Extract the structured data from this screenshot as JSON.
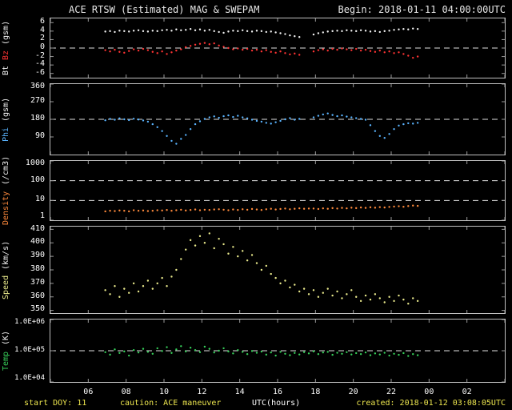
{
  "header": {
    "title": "ACE RTSW (Estimated) MAG & SWEPAM",
    "begin_label": "Begin: 2018-01-11 04:00:00UTC"
  },
  "footer": {
    "start_doy": "start DOY: 11",
    "caution": "caution:  ACE maneuver",
    "created": "created: 2018-01-12 03:08:05UTC"
  },
  "x_axis": {
    "label": "UTC(hours)",
    "range": [
      4,
      28
    ],
    "tick_values": [
      6,
      8,
      10,
      12,
      14,
      16,
      18,
      20,
      22,
      24,
      26
    ],
    "ticks": [
      "06",
      "08",
      "10",
      "12",
      "14",
      "16",
      "18",
      "20",
      "22",
      "00",
      "02"
    ]
  },
  "colors": {
    "background": "#000000",
    "frame": "#c0c0c0",
    "text": "#e8e8e8",
    "footer_yellow": "#ece54e",
    "bt": "#f2f2f2",
    "bz": "#ff3333",
    "phi": "#5ab4ff",
    "density": "#ff8a3c",
    "speed": "#eaea8c",
    "temp": "#37d05a"
  },
  "chart_data": [
    {
      "name": "mag-bt-bz",
      "type": "scatter",
      "scale": "linear",
      "ylim": [
        -7,
        7
      ],
      "yticks": [
        {
          "v": 6,
          "label": "6"
        },
        {
          "v": 4,
          "label": "4"
        },
        {
          "v": 2,
          "label": "2"
        },
        {
          "v": 0,
          "label": "0"
        },
        {
          "v": -2,
          "label": "-2"
        },
        {
          "v": -4,
          "label": "-4"
        },
        {
          "v": -6,
          "label": "-6"
        }
      ],
      "dashed": [
        0
      ],
      "ylabel_parts": [
        {
          "text": "Bt",
          "color": "#f2f2f2"
        },
        {
          "text": "Bz",
          "color": "#ff3333"
        },
        {
          "text": "(gsm)",
          "color": "#f2f2f2"
        }
      ],
      "series": [
        {
          "name": "Bt",
          "color": "#f2f2f2",
          "t_start": 6.9,
          "t_step": 0.25,
          "values": [
            3.9,
            4.0,
            3.8,
            4.1,
            4.0,
            3.9,
            4.1,
            4.2,
            4.0,
            3.9,
            4.1,
            4.0,
            4.2,
            4.3,
            4.1,
            4.4,
            4.2,
            4.3,
            4.5,
            4.2,
            4.4,
            4.1,
            4.3,
            4.0,
            3.8,
            3.6,
            3.9,
            4.1,
            4.0,
            4.2,
            4.0,
            3.9,
            4.1,
            4.0,
            3.8,
            3.9,
            3.7,
            3.5,
            3.3,
            3.0,
            2.8,
            2.6,
            null,
            null,
            3.2,
            3.5,
            3.7,
            3.9,
            4.0,
            4.1,
            4.0,
            4.2,
            4.1,
            4.0,
            4.2,
            4.1,
            3.9,
            4.0,
            3.8,
            4.0,
            4.1,
            4.3,
            4.4,
            4.5,
            4.4,
            4.6,
            4.5
          ]
        },
        {
          "name": "Bz",
          "color": "#ff3333",
          "t_start": 6.9,
          "t_step": 0.25,
          "values": [
            -0.5,
            -0.8,
            -0.4,
            -0.9,
            -1.1,
            -0.7,
            -0.3,
            -0.6,
            -0.2,
            -0.5,
            -0.9,
            -1.2,
            -0.8,
            -1.4,
            -1.0,
            -0.6,
            -0.3,
            0.2,
            0.5,
            0.8,
            1.0,
            1.2,
            0.9,
            1.1,
            0.6,
            0.3,
            0.0,
            -0.3,
            -0.1,
            -0.4,
            -0.2,
            -0.6,
            -0.4,
            -0.8,
            -0.5,
            -0.9,
            -1.1,
            -0.8,
            -1.2,
            -1.5,
            -1.3,
            -1.6,
            null,
            null,
            -0.8,
            -0.5,
            -0.3,
            -0.6,
            -0.2,
            -0.4,
            -0.1,
            -0.3,
            -0.5,
            -0.2,
            -0.6,
            -0.4,
            -0.7,
            -0.9,
            -0.6,
            -1.0,
            -0.8,
            -1.2,
            -1.0,
            -1.4,
            -1.8,
            -2.3,
            -2.0
          ]
        }
      ]
    },
    {
      "name": "mag-phi",
      "type": "scatter",
      "scale": "linear",
      "ylim": [
        0,
        360
      ],
      "yticks": [
        {
          "v": 360,
          "label": "360"
        },
        {
          "v": 270,
          "label": "270"
        },
        {
          "v": 180,
          "label": "180"
        },
        {
          "v": 90,
          "label": "90"
        }
      ],
      "dashed": [
        180
      ],
      "ylabel_parts": [
        {
          "text": "Phi",
          "color": "#5ab4ff"
        },
        {
          "text": "(gsm)",
          "color": "#f2f2f2"
        }
      ],
      "series": [
        {
          "name": "Phi",
          "color": "#5ab4ff",
          "t_start": 6.9,
          "t_step": 0.25,
          "values": [
            175,
            182,
            178,
            185,
            180,
            176,
            183,
            179,
            174,
            168,
            155,
            140,
            120,
            95,
            70,
            55,
            80,
            100,
            130,
            155,
            170,
            182,
            190,
            195,
            188,
            196,
            200,
            192,
            198,
            190,
            185,
            178,
            172,
            168,
            162,
            158,
            165,
            172,
            180,
            186,
            178,
            182,
            null,
            null,
            190,
            198,
            205,
            210,
            202,
            196,
            200,
            194,
            190,
            186,
            182,
            178,
            150,
            120,
            95,
            85,
            105,
            130,
            148,
            155,
            160,
            158,
            162
          ]
        }
      ]
    },
    {
      "name": "swepam-density",
      "type": "scatter",
      "scale": "log",
      "ylim": [
        1,
        1000
      ],
      "yticks": [
        {
          "v": 1000,
          "label": "1000"
        },
        {
          "v": 100,
          "label": "100"
        },
        {
          "v": 10,
          "label": "10"
        },
        {
          "v": 1,
          "label": "1"
        }
      ],
      "dashed": [
        100,
        10
      ],
      "ylabel_parts": [
        {
          "text": "Density",
          "color": "#ff8a3c"
        },
        {
          "text": "(/cm3)",
          "color": "#f2f2f2"
        }
      ],
      "series": [
        {
          "name": "Density",
          "color": "#ff8a3c",
          "t_start": 6.9,
          "t_step": 0.25,
          "values": [
            2.8,
            3.0,
            2.9,
            3.1,
            3.0,
            2.8,
            3.2,
            3.0,
            3.1,
            2.9,
            3.0,
            3.2,
            3.1,
            3.3,
            3.0,
            3.2,
            3.4,
            3.1,
            3.3,
            3.5,
            3.2,
            3.4,
            3.3,
            3.5,
            3.6,
            3.4,
            3.2,
            3.5,
            3.3,
            3.6,
            3.4,
            3.7,
            3.5,
            3.3,
            3.6,
            3.8,
            3.5,
            3.7,
            3.9,
            3.6,
            3.8,
            4.0,
            3.8,
            3.9,
            3.9,
            3.7,
            4.0,
            3.8,
            4.1,
            3.9,
            4.2,
            4.0,
            4.3,
            4.1,
            4.4,
            4.2,
            4.5,
            4.3,
            4.6,
            4.4,
            4.7,
            4.9,
            5.1,
            4.8,
            5.2,
            5.5,
            5.3
          ]
        }
      ]
    },
    {
      "name": "swepam-speed",
      "type": "scatter",
      "scale": "linear",
      "ylim": [
        348,
        412
      ],
      "yticks": [
        {
          "v": 410,
          "label": "410"
        },
        {
          "v": 400,
          "label": "400"
        },
        {
          "v": 390,
          "label": "390"
        },
        {
          "v": 380,
          "label": "380"
        },
        {
          "v": 370,
          "label": "370"
        },
        {
          "v": 360,
          "label": "360"
        },
        {
          "v": 350,
          "label": "350"
        }
      ],
      "dashed": [],
      "ylabel_parts": [
        {
          "text": "Speed",
          "color": "#eaea8c"
        },
        {
          "text": "(km/s)",
          "color": "#f2f2f2"
        }
      ],
      "series": [
        {
          "name": "Speed",
          "color": "#eaea8c",
          "t_start": 6.9,
          "t_step": 0.25,
          "values": [
            365,
            362,
            368,
            360,
            366,
            363,
            370,
            364,
            368,
            372,
            366,
            370,
            374,
            368,
            375,
            380,
            388,
            395,
            402,
            398,
            405,
            400,
            407,
            396,
            403,
            399,
            392,
            397,
            390,
            394,
            387,
            391,
            385,
            380,
            383,
            377,
            374,
            370,
            372,
            367,
            369,
            364,
            366,
            362,
            365,
            360,
            363,
            366,
            361,
            364,
            359,
            362,
            365,
            360,
            357,
            361,
            358,
            362,
            359,
            356,
            360,
            357,
            361,
            358,
            355,
            359,
            357
          ]
        }
      ]
    },
    {
      "name": "swepam-temp",
      "type": "scatter",
      "scale": "log",
      "ylim": [
        10000,
        1000000
      ],
      "yticks": [
        {
          "v": 1000000,
          "label": "1.0E+06"
        },
        {
          "v": 100000,
          "label": "1.0E+05"
        },
        {
          "v": 10000,
          "label": "1.0E+04"
        }
      ],
      "dashed": [
        100000
      ],
      "ylabel_parts": [
        {
          "text": "Temp",
          "color": "#37d05a"
        },
        {
          "text": "(K)",
          "color": "#f2f2f2"
        }
      ],
      "series": [
        {
          "name": "Temp",
          "color": "#37d05a",
          "t_start": 6.9,
          "t_step": 0.25,
          "values": [
            90000,
            75000,
            110000,
            85000,
            95000,
            70000,
            105000,
            88000,
            115000,
            92000,
            80000,
            120000,
            98000,
            130000,
            85000,
            110000,
            140000,
            95000,
            125000,
            105000,
            90000,
            135000,
            115000,
            88000,
            100000,
            120000,
            95000,
            82000,
            105000,
            92000,
            78000,
            98000,
            86000,
            94000,
            75000,
            88000,
            70000,
            92000,
            80000,
            72000,
            85000,
            76000,
            90000,
            82000,
            95000,
            78000,
            88000,
            92000,
            74000,
            86000,
            80000,
            90000,
            76000,
            84000,
            78000,
            88000,
            72000,
            82000,
            76000,
            86000,
            70000,
            80000,
            74000,
            84000,
            68000,
            78000,
            72000
          ]
        }
      ]
    }
  ]
}
